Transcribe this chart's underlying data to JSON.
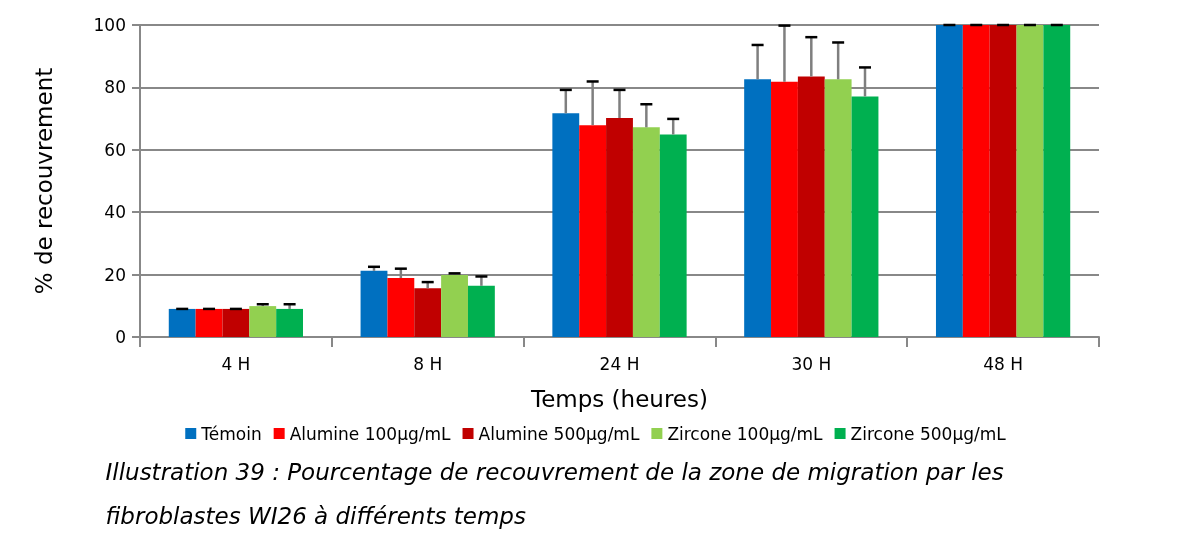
{
  "chart_data": {
    "type": "bar",
    "xlabel": "Temps (heures)",
    "ylabel": "% de recouvrement",
    "categories": [
      "4 H",
      "8 H",
      "24 H",
      "30 H",
      "48 H"
    ],
    "series": [
      {
        "name": "Témoin",
        "color": "#0070c0",
        "values": [
          9,
          21.2,
          71.7,
          82.6,
          100
        ],
        "errors": [
          0,
          1.3,
          7.5,
          11,
          0
        ]
      },
      {
        "name": "Alumine 100µg/mL",
        "color": "#ff0000",
        "values": [
          9,
          18.9,
          67.9,
          81.8,
          100
        ],
        "errors": [
          0,
          3,
          14,
          18,
          0
        ]
      },
      {
        "name": "Alumine 500µg/mL",
        "color": "#c00000",
        "values": [
          9,
          15.6,
          70.2,
          83.5,
          100
        ],
        "errors": [
          0,
          2,
          9,
          12.6,
          0
        ]
      },
      {
        "name": "Zircone 100µg/mL",
        "color": "#92d050",
        "values": [
          9.9,
          19.9,
          67.2,
          82.6,
          100
        ],
        "errors": [
          0.6,
          0.5,
          7.4,
          11.8,
          0
        ]
      },
      {
        "name": "Zircone 500µg/mL",
        "color": "#00b050",
        "values": [
          9,
          16.4,
          64.9,
          77.1,
          100
        ],
        "errors": [
          1.5,
          3,
          5,
          9.3,
          0
        ]
      }
    ],
    "ylim": [
      0,
      100
    ],
    "yticks": [
      0,
      20,
      40,
      60,
      80,
      100
    ],
    "grid": "y",
    "legend": "bottom",
    "annotations": [
      "Illustration 39 : Pourcentage de recouvrement de la zone de migration par les fibroblastes WI26 à différents temps"
    ]
  }
}
